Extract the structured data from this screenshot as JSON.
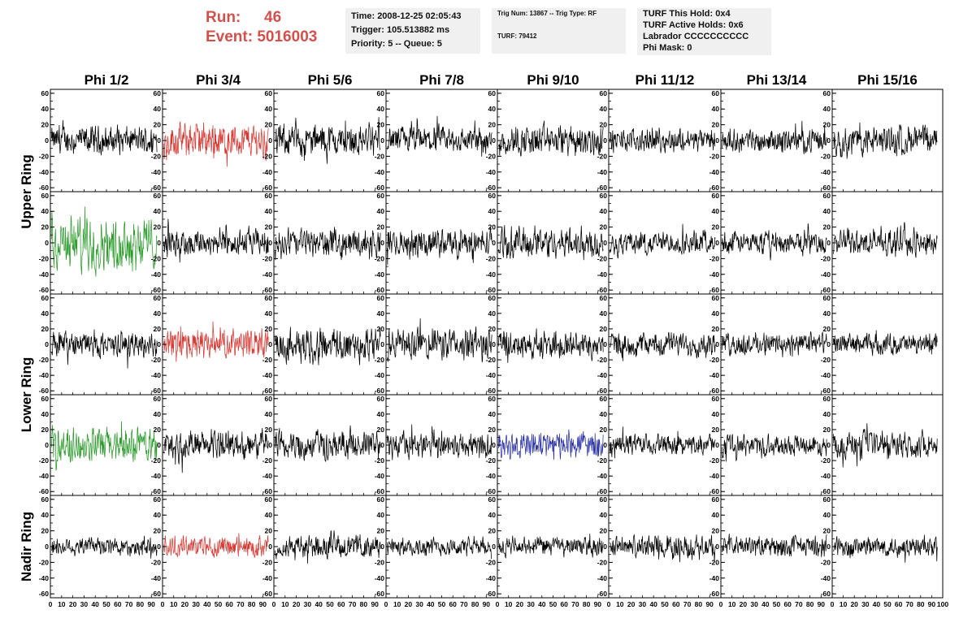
{
  "header": {
    "run_label": "Run:",
    "run_value": "46",
    "event_label": "Event:",
    "event_value": "5016003",
    "box1": {
      "time": "Time: 2008-12-25 02:05:43",
      "trigger": "Trigger: 105.513882 ms",
      "priority": "Priority: 5 -- Queue: 5"
    },
    "box2": {
      "trig": "Trig Num: 13867 -- Trig Type: RF",
      "turf": "TURF: 79412"
    },
    "box3": {
      "hold": "TURF This Hold: 0x4",
      "active": "TURF Active Holds: 0x6",
      "labrador": "Labrador CCCCCCCCCC",
      "phimask": "Phi Mask: 0"
    }
  },
  "colors": {
    "default": "#000000",
    "red": "#d63a34",
    "green": "#2a9a2a",
    "blue": "#2a33a6",
    "title_red": "#d0504c"
  },
  "chart_data": {
    "type": "line",
    "columns": [
      "Phi 1/2",
      "Phi 3/4",
      "Phi 5/6",
      "Phi 7/8",
      "Phi 9/10",
      "Phi 11/12",
      "Phi 13/14",
      "Phi 15/16"
    ],
    "row_groups": [
      {
        "label": "Upper Ring",
        "rows": [
          0,
          1
        ]
      },
      {
        "label": "Lower Ring",
        "rows": [
          2,
          3
        ]
      },
      {
        "label": "Nadir Ring",
        "rows": [
          4
        ]
      }
    ],
    "y_ticks": [
      -60,
      -40,
      -20,
      0,
      20,
      40,
      60
    ],
    "y_tick_labels": [
      "-60",
      "-40",
      "-20",
      "0",
      "20",
      "40",
      "60"
    ],
    "ylim": [
      -65,
      65
    ],
    "x_tick_labels": [
      "0",
      "10",
      "20",
      "30",
      "40",
      "50",
      "60",
      "70",
      "80",
      "90",
      "100"
    ],
    "xlim": [
      0,
      100
    ],
    "series_samples": 260,
    "grid": false,
    "panels": [
      [
        {
          "color": "default",
          "amp": 16
        },
        {
          "color": "red",
          "amp": 20
        },
        {
          "color": "default",
          "amp": 18
        },
        {
          "color": "default",
          "amp": 16
        },
        {
          "color": "default",
          "amp": 18
        },
        {
          "color": "default",
          "amp": 13
        },
        {
          "color": "default",
          "amp": 13
        },
        {
          "color": "default",
          "amp": 17
        }
      ],
      [
        {
          "color": "green",
          "amp": 30
        },
        {
          "color": "default",
          "amp": 16
        },
        {
          "color": "default",
          "amp": 16
        },
        {
          "color": "default",
          "amp": 16
        },
        {
          "color": "default",
          "amp": 18
        },
        {
          "color": "default",
          "amp": 13
        },
        {
          "color": "default",
          "amp": 13
        },
        {
          "color": "default",
          "amp": 15
        }
      ],
      [
        {
          "color": "default",
          "amp": 15
        },
        {
          "color": "red",
          "amp": 17
        },
        {
          "color": "default",
          "amp": 20
        },
        {
          "color": "default",
          "amp": 19
        },
        {
          "color": "default",
          "amp": 16
        },
        {
          "color": "default",
          "amp": 14
        },
        {
          "color": "default",
          "amp": 13
        },
        {
          "color": "default",
          "amp": 12
        }
      ],
      [
        {
          "color": "green",
          "amp": 20
        },
        {
          "color": "default",
          "amp": 17
        },
        {
          "color": "default",
          "amp": 17
        },
        {
          "color": "default",
          "amp": 15
        },
        {
          "color": "blue",
          "amp": 16
        },
        {
          "color": "default",
          "amp": 12
        },
        {
          "color": "default",
          "amp": 12
        },
        {
          "color": "default",
          "amp": 15
        }
      ],
      [
        {
          "color": "default",
          "amp": 11
        },
        {
          "color": "red",
          "amp": 12
        },
        {
          "color": "default",
          "amp": 13
        },
        {
          "color": "default",
          "amp": 10
        },
        {
          "color": "default",
          "amp": 11
        },
        {
          "color": "default",
          "amp": 13
        },
        {
          "color": "default",
          "amp": 12
        },
        {
          "color": "default",
          "amp": 12
        }
      ]
    ]
  }
}
